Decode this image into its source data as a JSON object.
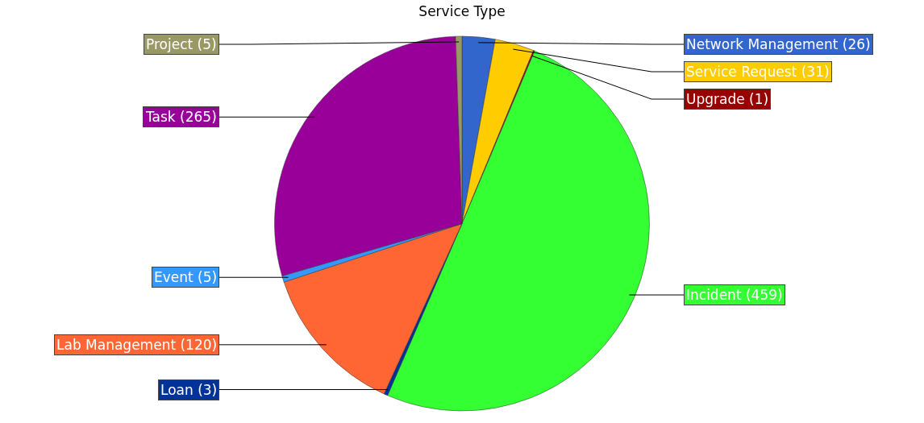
{
  "chart_data": {
    "type": "pie",
    "title": "Service Type",
    "categories": [
      "Network Management",
      "Service Request",
      "Upgrade",
      "Incident",
      "Loan",
      "Lab Management",
      "Event",
      "Task",
      "Project"
    ],
    "values": [
      26,
      31,
      1,
      459,
      3,
      120,
      5,
      265,
      5
    ],
    "colors": [
      "#3366cc",
      "#ffcc00",
      "#990000",
      "#33ff33",
      "#003399",
      "#ff6633",
      "#3399ff",
      "#990099",
      "#999966"
    ],
    "value_labels": [
      "(26)",
      "(31)",
      "(1)",
      "(459)",
      "(3)",
      "(120)",
      "(5)",
      "(265)",
      "(5)"
    ]
  }
}
